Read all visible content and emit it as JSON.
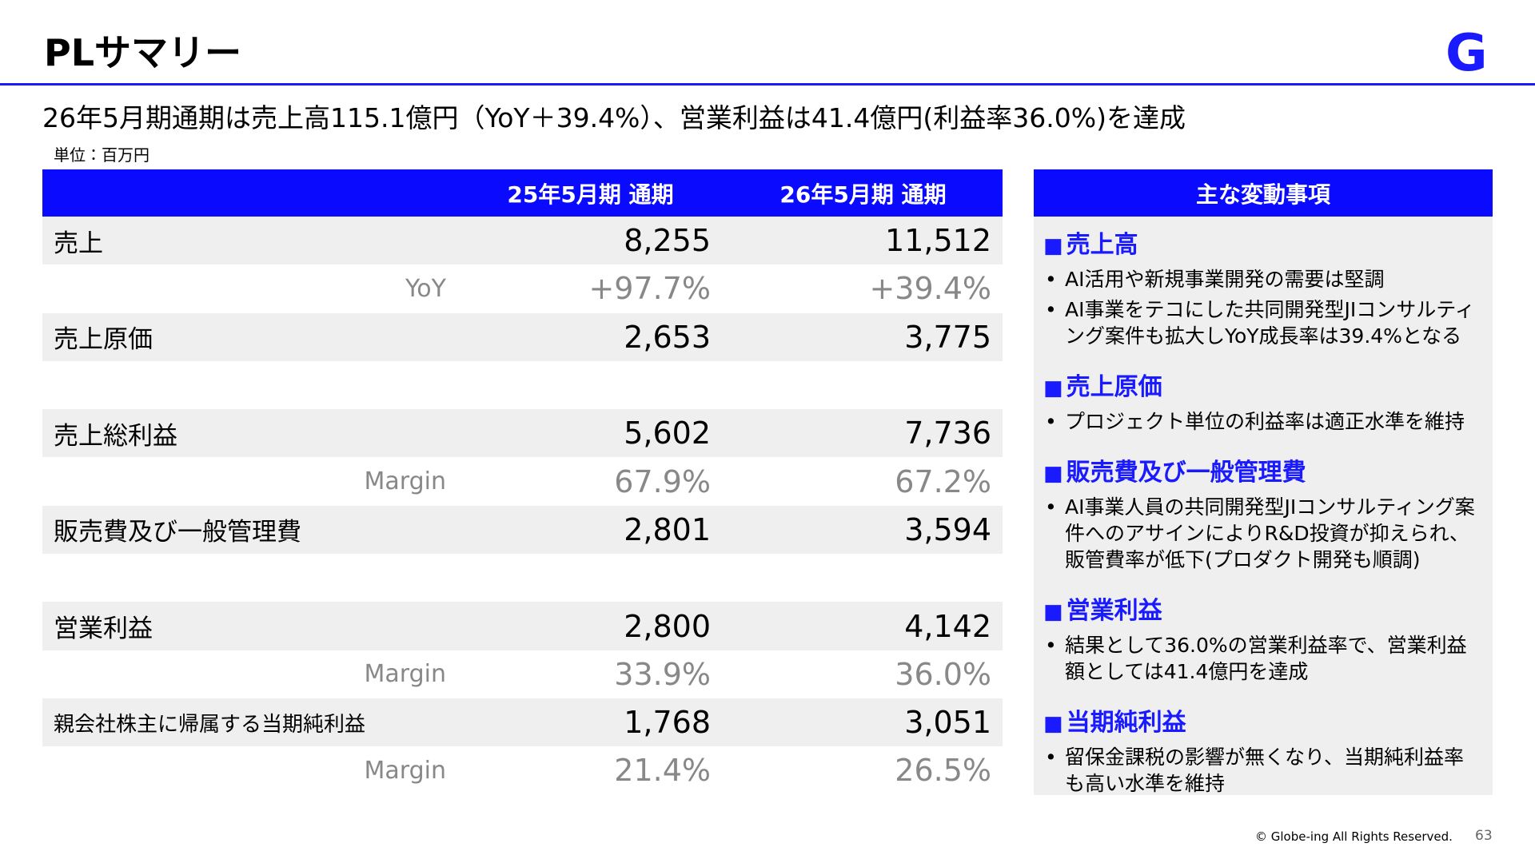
{
  "header": {
    "title": "PLサマリー",
    "logo": "G"
  },
  "subtitle": "26年5月期通期は売上高115.1億円（YoY＋39.4%）、営業利益は41.4億円(利益率36.0%)を達成",
  "unit": "単位：百万円",
  "table": {
    "columns": [
      "25年5月期 通期",
      "26年5月期 通期"
    ],
    "rows": [
      [
        "売上",
        "8,255",
        "11,512"
      ],
      [
        "YoY",
        "+97.7%",
        "+39.4%"
      ],
      [
        "売上原価",
        "2,653",
        "3,775"
      ],
      [
        "売上総利益",
        "5,602",
        "7,736"
      ],
      [
        "Margin",
        "67.9%",
        "67.2%"
      ],
      [
        "販売費及び一般管理費",
        "2,801",
        "3,594"
      ],
      [
        "営業利益",
        "2,800",
        "4,142"
      ],
      [
        "Margin",
        "33.9%",
        "36.0%"
      ],
      [
        "親会社株主に帰属する当期純利益",
        "1,768",
        "3,051"
      ],
      [
        "Margin",
        "21.4%",
        "26.5%"
      ]
    ]
  },
  "panel": {
    "title": "主な変動事項",
    "sections": [
      {
        "heading": "売上高",
        "bullets": [
          "AI活用や新規事業開発の需要は堅調",
          "AI事業をテコにした共同開発型JIコンサルティング案件も拡大しYoY成長率は39.4%となる"
        ]
      },
      {
        "heading": "売上原価",
        "bullets": [
          "プロジェクト単位の利益率は適正水準を維持"
        ]
      },
      {
        "heading": "販売費及び一般管理費",
        "bullets": [
          "AI事業人員の共同開発型JIコンサルティング案件へのアサインによりR&D投資が抑えられ、販管費率が低下(プロダクト開発も順調)"
        ]
      },
      {
        "heading": "営業利益",
        "bullets": [
          "結果として36.0%の営業利益率で、営業利益額としては41.4億円を達成"
        ]
      },
      {
        "heading": "当期純利益",
        "bullets": [
          "留保金課税の影響が無くなり、当期純利益率も高い水準を維持"
        ]
      }
    ]
  },
  "footer": {
    "copyright": "© Globe-ing All Rights Reserved.",
    "page": "63"
  }
}
